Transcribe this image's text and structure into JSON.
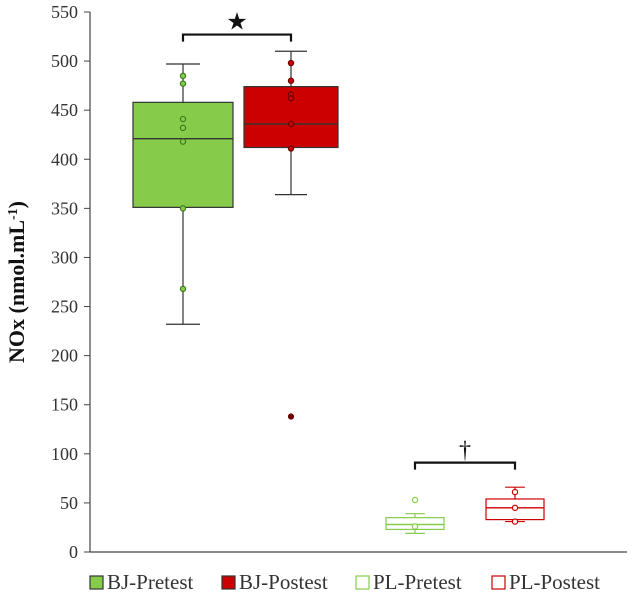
{
  "chart_data": {
    "type": "box",
    "ylabel": "NOx (nmol.mL",
    "ylabel_sup": "-1",
    "ylabel_close": ")",
    "ylim": [
      0,
      550
    ],
    "yticks": [
      0,
      50,
      100,
      150,
      200,
      250,
      300,
      350,
      400,
      450,
      500,
      550
    ],
    "grid": false,
    "legend_position": "bottom",
    "series": [
      {
        "name": "BJ-Pretest",
        "group": "BJ",
        "fill": "#86cc4a",
        "stroke": "#333333",
        "point_color": "#3f7a1c",
        "box": {
          "whisker_low": 232,
          "q1": 351,
          "median": 421,
          "q3": 458,
          "whisker_high": 497
        },
        "points": [
          485,
          477,
          441,
          432,
          418,
          350,
          268
        ],
        "outliers": []
      },
      {
        "name": "BJ-Postest",
        "group": "BJ",
        "fill": "#cc0000",
        "stroke": "#333333",
        "point_color": "#6b0000",
        "box": {
          "whisker_low": 364,
          "q1": 412,
          "median": 436,
          "q3": 474,
          "whisker_high": 510
        },
        "points": [
          498,
          480,
          466,
          462,
          436,
          411
        ],
        "outliers": [
          138
        ]
      },
      {
        "name": "PL-Pretest",
        "group": "PL",
        "fill": "#ffffff",
        "stroke": "#86cc4a",
        "point_color": "#86cc4a",
        "box": {
          "whisker_low": 19,
          "q1": 23,
          "median": 28,
          "q3": 35,
          "whisker_high": 39
        },
        "points": [
          53,
          26
        ],
        "outliers": []
      },
      {
        "name": "PL-Postest",
        "group": "PL",
        "fill": "#ffffff",
        "stroke": "#cc0000",
        "point_color": "#cc0000",
        "box": {
          "whisker_low": 31,
          "q1": 33,
          "median": 45,
          "q3": 54,
          "whisker_high": 66
        },
        "points": [
          61,
          45,
          31
        ],
        "outliers": []
      }
    ],
    "annotations": [
      {
        "symbol": "★",
        "between": [
          "BJ-Pretest",
          "BJ-Postest"
        ],
        "level": 527
      },
      {
        "symbol": "†",
        "between": [
          "PL-Pretest",
          "PL-Postest"
        ],
        "level": 91
      }
    ]
  }
}
